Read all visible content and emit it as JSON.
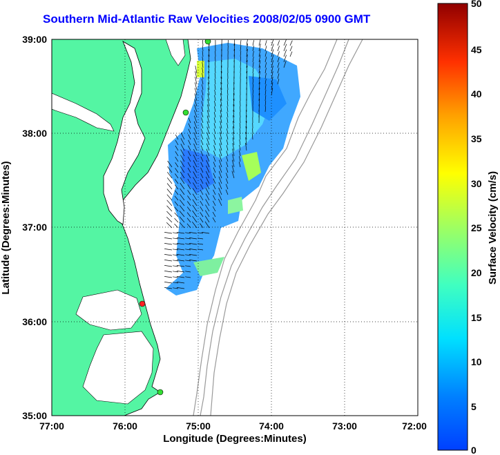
{
  "title": "Southern Mid-Atlantic Raw Velocities 2008/02/05 0900 GMT",
  "xlabel": "Longitude (Degrees:Minutes)",
  "ylabel": "Latitude (Degrees:Minutes)",
  "colorbar_label": "Surface Velocity (cm/s)",
  "x_ticks": [
    "77:00",
    "76:00",
    "75:00",
    "74:00",
    "73:00",
    "72:00"
  ],
  "y_ticks": [
    "39:00",
    "38:00",
    "37:00",
    "36:00",
    "35:00"
  ],
  "colorbar_ticks": [
    "50",
    "45",
    "40",
    "35",
    "30",
    "25",
    "20",
    "15",
    "10",
    "5",
    "0"
  ],
  "colors": {
    "land": "#54f5a3",
    "coastline": "#000000",
    "bathymetry": "#999999",
    "stations_green": "#33dd33",
    "station_red": "#ff2222",
    "title": "#0000ff"
  },
  "chart_data": {
    "type": "heatmap",
    "xlim": [
      -77,
      -72
    ],
    "ylim": [
      35,
      39
    ],
    "colorbar_range": [
      0,
      50
    ],
    "colormap": "jet",
    "grid": true
  }
}
